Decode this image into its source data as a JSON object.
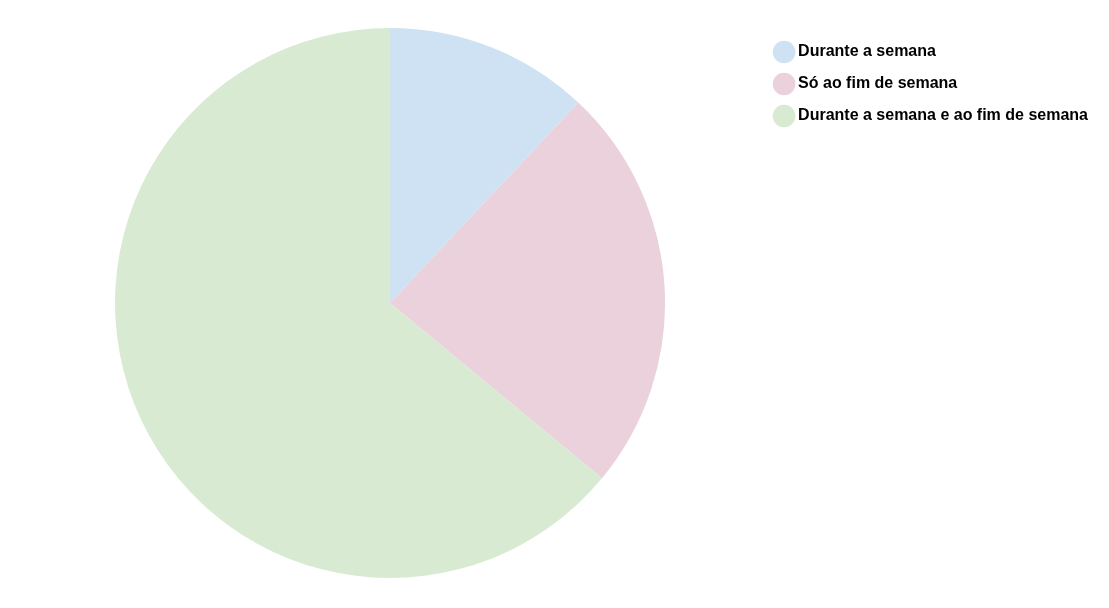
{
  "chart_data": {
    "type": "pie",
    "categories": [
      "Durante a semana",
      "Só ao fim de semana",
      "Durante a semana e ao fim de semana"
    ],
    "values": [
      12,
      24,
      64
    ],
    "colors": [
      "#cfe2f3",
      "#ead1dc",
      "#d9ead3"
    ],
    "legend": "right"
  }
}
